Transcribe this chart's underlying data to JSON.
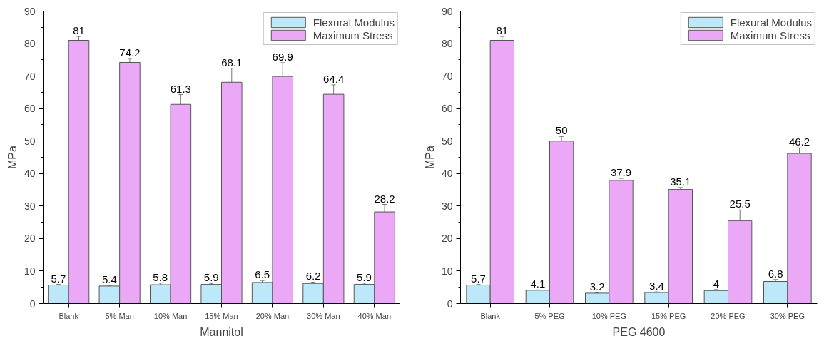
{
  "chart_data": [
    {
      "type": "bar",
      "xlabel": "Mannitol",
      "ylabel": "MPa",
      "categories": [
        "Blank",
        "5% Man",
        "10% Man",
        "15% Man",
        "20% Man",
        "30% Man",
        "40% Man"
      ],
      "series": [
        {
          "name": "Flexural Modulus",
          "color": "#bde8f9",
          "values": [
            5.7,
            5.4,
            5.8,
            5.9,
            6.5,
            6.2,
            5.9
          ],
          "errors": [
            0.2,
            0.2,
            0.5,
            0.3,
            0.6,
            0.4,
            0.4
          ]
        },
        {
          "name": "Maximum Stress",
          "color": "#eaa8f7",
          "values": [
            81,
            74.2,
            61.3,
            68.1,
            69.9,
            64.4,
            28.2
          ],
          "errors": [
            1.2,
            1.2,
            3,
            4.3,
            4.2,
            2.9,
            2.3
          ]
        }
      ],
      "ylim": [
        0,
        90
      ],
      "yticks": [
        0,
        {
          "value": 5,
          "label": null
        },
        10,
        {
          "value": 15,
          "label": null
        },
        20,
        {
          "value": 25,
          "label": null
        },
        30,
        {
          "value": 35,
          "label": null
        },
        40,
        {
          "value": 45,
          "label": null
        },
        50,
        {
          "value": 55,
          "label": null
        },
        60,
        {
          "value": 65,
          "label": null
        },
        70,
        {
          "value": 75,
          "label": null
        },
        80,
        {
          "value": 85,
          "label": null
        },
        90
      ],
      "data_labels": true,
      "grid": false,
      "legend": "top right"
    },
    {
      "type": "bar",
      "xlabel": "PEG 4600",
      "ylabel": "MPa",
      "categories": [
        "Blank",
        "5% PEG",
        "10% PEG",
        "15% PEG",
        "20% PEG",
        "30% PEG"
      ],
      "series": [
        {
          "name": "Flexural Modulus",
          "color": "#bde8f9",
          "values": [
            5.7,
            4.1,
            3.2,
            3.4,
            4,
            6.8
          ],
          "errors": [
            0.2,
            0.1,
            0.1,
            0.2,
            0.3,
            0.6
          ]
        },
        {
          "name": "Maximum Stress",
          "color": "#eaa8f7",
          "values": [
            81,
            50,
            37.9,
            35.1,
            25.5,
            46.2
          ],
          "errors": [
            1.2,
            1.4,
            0.6,
            0.6,
            3.3,
            1.7
          ]
        }
      ],
      "ylim": [
        0,
        90
      ],
      "yticks": [
        0,
        {
          "value": 5,
          "label": null
        },
        10,
        {
          "value": 15,
          "label": null
        },
        20,
        {
          "value": 25,
          "label": null
        },
        30,
        {
          "value": 35,
          "label": null
        },
        40,
        {
          "value": 45,
          "label": null
        },
        50,
        {
          "value": 55,
          "label": null
        },
        60,
        {
          "value": 65,
          "label": null
        },
        70,
        {
          "value": 75,
          "label": null
        },
        80,
        {
          "value": 85,
          "label": null
        },
        90
      ],
      "data_labels": true,
      "grid": false,
      "legend": "top right"
    }
  ]
}
